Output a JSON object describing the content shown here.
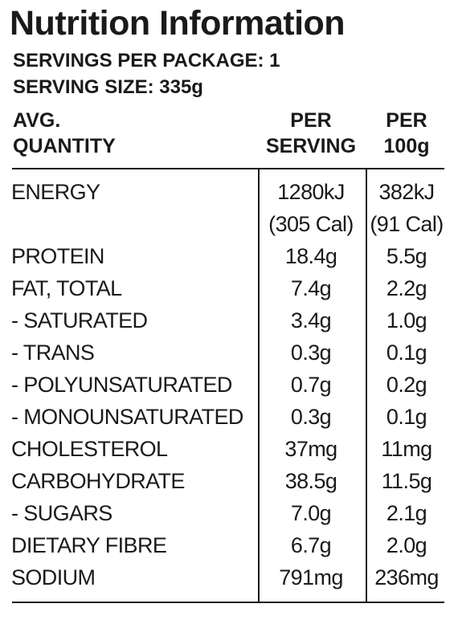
{
  "title": "Nutrition Information",
  "servings_per_package": "SERVINGS PER PACKAGE: 1",
  "serving_size": "SERVING SIZE: 335g",
  "table": {
    "columns": [
      [
        "AVG.",
        "QUANTITY"
      ],
      [
        "PER",
        "SERVING"
      ],
      [
        "PER",
        "100g"
      ]
    ],
    "rows": [
      [
        [
          "ENERGY"
        ],
        [
          "1280kJ",
          "(305 Cal)"
        ],
        [
          "382kJ",
          "(91 Cal)"
        ]
      ],
      [
        [
          "PROTEIN"
        ],
        [
          "18.4g"
        ],
        [
          "5.5g"
        ]
      ],
      [
        [
          "FAT, TOTAL"
        ],
        [
          "7.4g"
        ],
        [
          "2.2g"
        ]
      ],
      [
        [
          "- SATURATED"
        ],
        [
          "3.4g"
        ],
        [
          "1.0g"
        ]
      ],
      [
        [
          "- TRANS"
        ],
        [
          "0.3g"
        ],
        [
          "0.1g"
        ]
      ],
      [
        [
          "- POLYUNSATURATED"
        ],
        [
          "0.7g"
        ],
        [
          "0.2g"
        ]
      ],
      [
        [
          "- MONOUNSATURATED"
        ],
        [
          "0.3g"
        ],
        [
          "0.1g"
        ]
      ],
      [
        [
          "CHOLESTEROL"
        ],
        [
          "37mg"
        ],
        [
          "11mg"
        ]
      ],
      [
        [
          "CARBOHYDRATE"
        ],
        [
          "38.5g"
        ],
        [
          "11.5g"
        ]
      ],
      [
        [
          "- SUGARS"
        ],
        [
          "7.0g"
        ],
        [
          "2.1g"
        ]
      ],
      [
        [
          "DIETARY FIBRE"
        ],
        [
          "6.7g"
        ],
        [
          "2.0g"
        ]
      ],
      [
        [
          "SODIUM"
        ],
        [
          "791mg"
        ],
        [
          "236mg"
        ]
      ]
    ]
  }
}
